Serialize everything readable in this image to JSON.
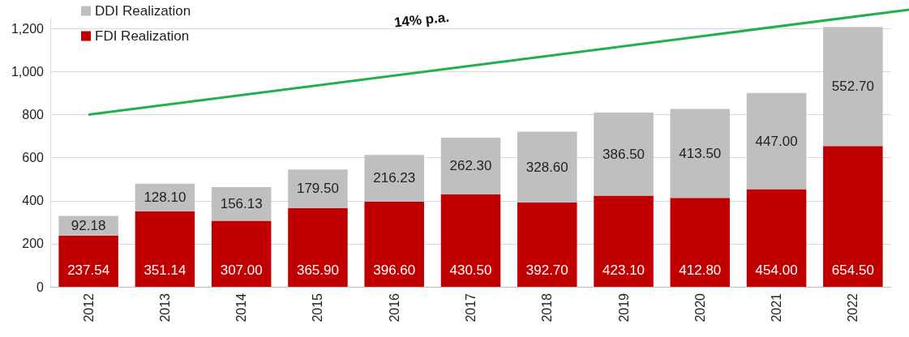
{
  "chart_data": {
    "type": "bar",
    "stacked": true,
    "categories": [
      "2012",
      "2013",
      "2014",
      "2015",
      "2016",
      "2017",
      "2018",
      "2019",
      "2020",
      "2021",
      "2022"
    ],
    "series": [
      {
        "name": "FDI Realization",
        "color": "#c00000",
        "values": [
          237.54,
          351.14,
          307.0,
          365.9,
          396.6,
          430.5,
          392.7,
          423.1,
          412.8,
          454.0,
          654.5
        ],
        "value_labels": [
          "237.54",
          "351.14",
          "307.00",
          "365.90",
          "396.60",
          "430.50",
          "392.70",
          "423.10",
          "412.80",
          "454.00",
          "654.50"
        ]
      },
      {
        "name": "DDI Realization",
        "color": "#bfbfbf",
        "values": [
          92.18,
          128.1,
          156.13,
          179.5,
          216.23,
          262.3,
          328.6,
          386.5,
          413.5,
          447.0,
          552.7
        ],
        "value_labels": [
          "92.18",
          "128.10",
          "156.13",
          "179.50",
          "216.23",
          "262.30",
          "328.60",
          "386.50",
          "413.50",
          "447.00",
          "552.70"
        ]
      }
    ],
    "ylim": [
      0,
      1250
    ],
    "yticks": [
      0,
      200,
      400,
      600,
      800,
      {
        "value": 1000,
        "label": "1,000"
      },
      {
        "value": 1200,
        "label": "1,200"
      }
    ],
    "grid": "y",
    "legend": "top left",
    "annotations": [
      "14% p.a."
    ]
  }
}
